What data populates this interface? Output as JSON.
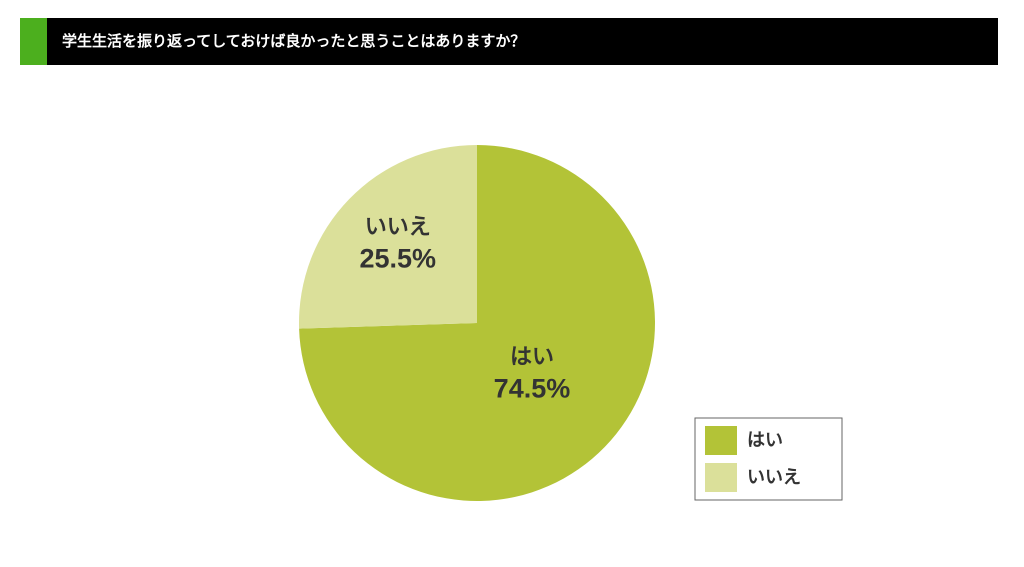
{
  "chart_data": {
    "type": "pie",
    "title": "学生生活を振り返ってしておけば良かったと思うことはありますか？",
    "categories": [
      "はい",
      "いいえ"
    ],
    "values": [
      74.5,
      25.5
    ],
    "value_labels": [
      "74.5%",
      "25.5%"
    ],
    "colors": [
      "#b3c337",
      "#dbe09a"
    ],
    "legend": "lower right"
  }
}
